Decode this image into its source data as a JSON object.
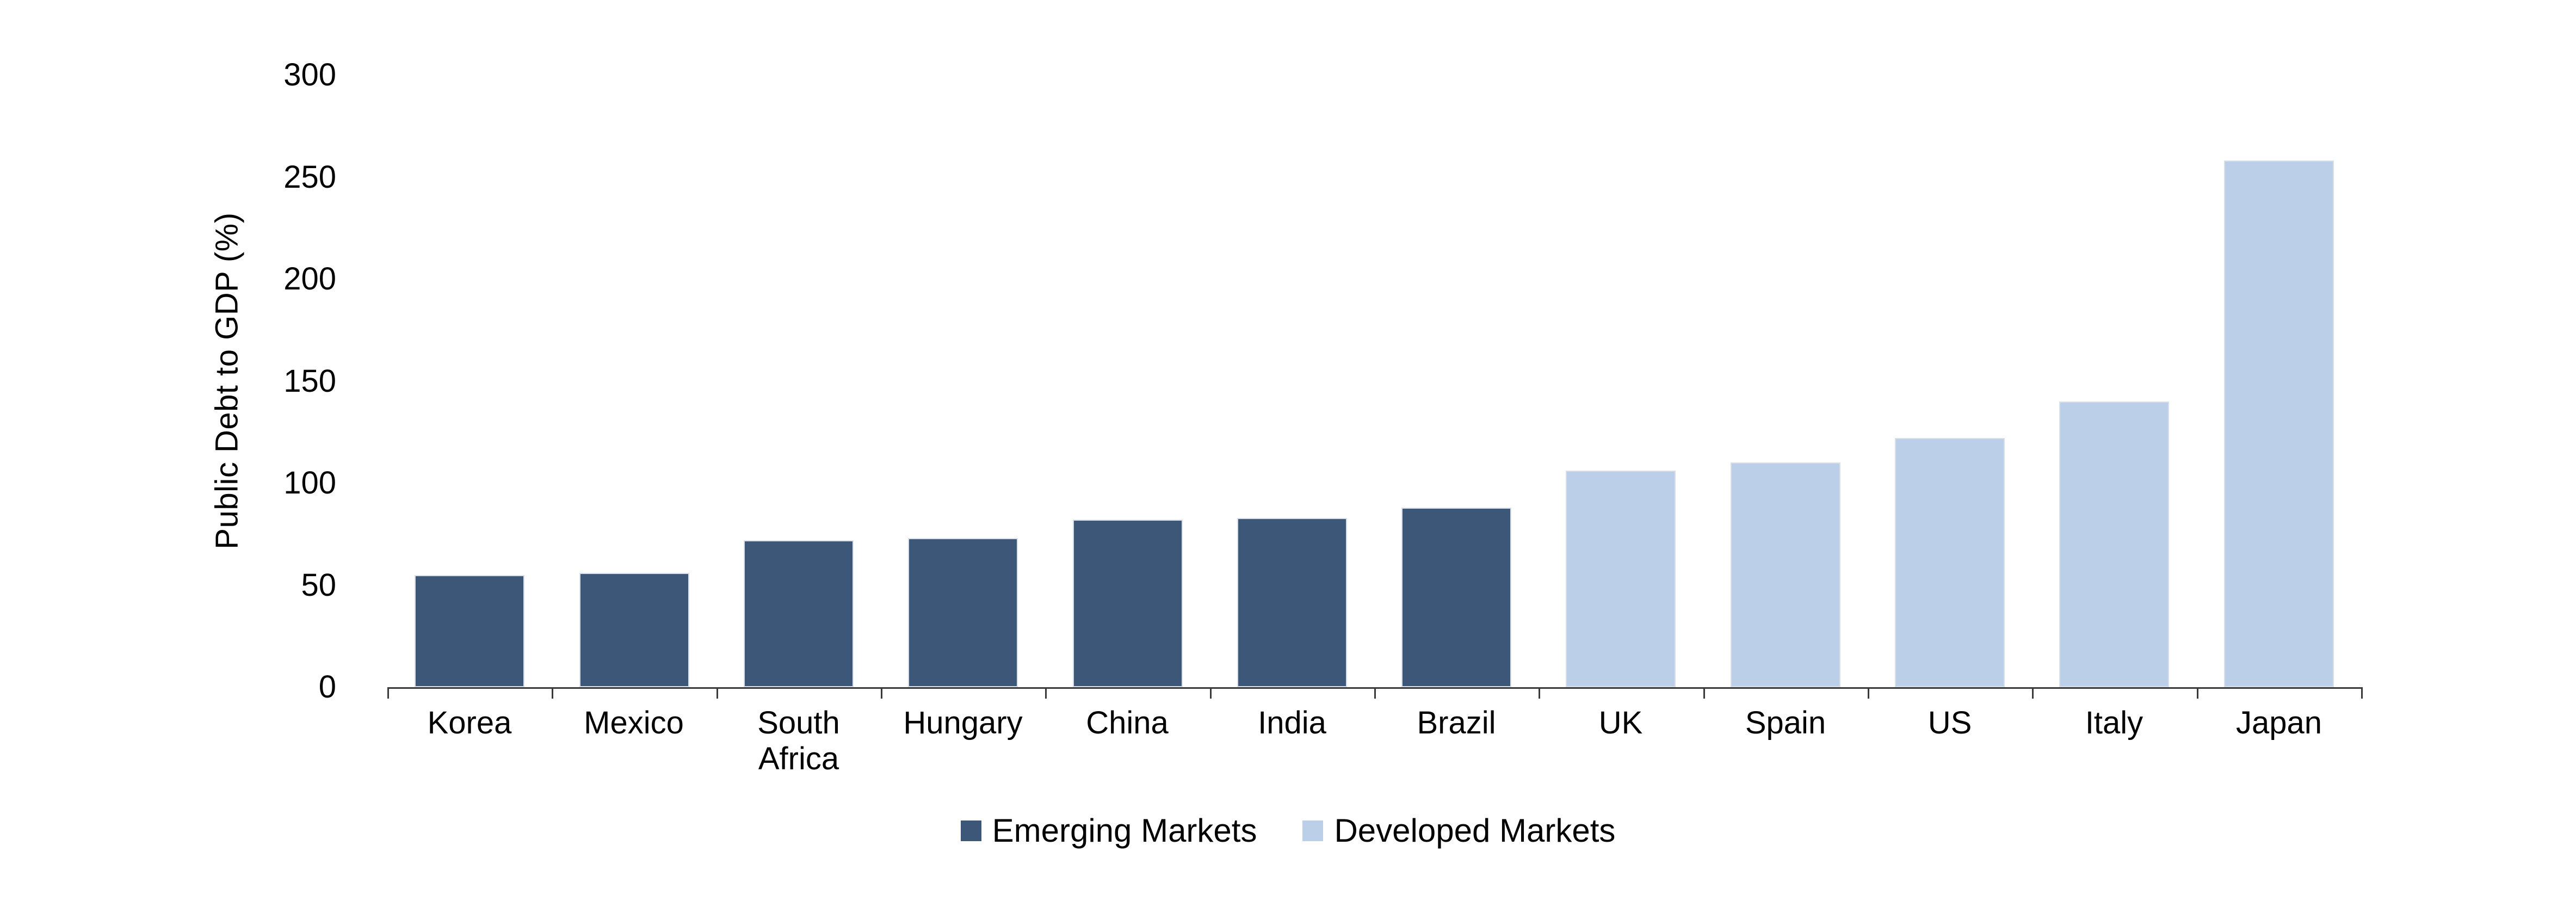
{
  "chart_data": {
    "type": "bar",
    "title": "",
    "xlabel": "",
    "ylabel": "Public Debt to GDP (%)",
    "ylim": [
      0,
      300
    ],
    "yticks": [
      0,
      50,
      100,
      150,
      200,
      250,
      300
    ],
    "grid": false,
    "legend_position": "bottom-center",
    "categories": [
      "Korea",
      "Mexico",
      "South Africa",
      "Hungary",
      "China",
      "India",
      "Brazil",
      "UK",
      "Spain",
      "US",
      "Italy",
      "Japan"
    ],
    "series": [
      {
        "name": "Emerging Markets",
        "color": "#3d5778",
        "categories": [
          "Korea",
          "Mexico",
          "South Africa",
          "Hungary",
          "China",
          "India",
          "Brazil"
        ],
        "values": [
          55,
          56,
          72,
          73,
          82,
          83,
          88
        ]
      },
      {
        "name": "Developed Markets",
        "color": "#bccfe8",
        "categories": [
          "UK",
          "Spain",
          "US",
          "Italy",
          "Japan"
        ],
        "values": [
          106,
          110,
          122,
          140,
          258
        ]
      }
    ],
    "axis_color": "#3a3a3a",
    "text_color": "#000000"
  }
}
